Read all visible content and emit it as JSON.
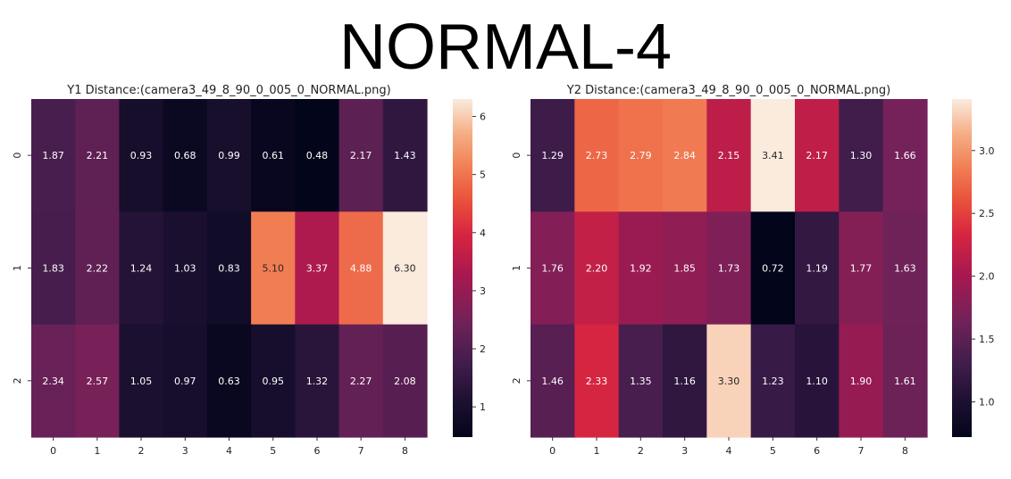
{
  "suptitle": "NORMAL-4",
  "chart_data": [
    {
      "type": "heatmap",
      "title": "Y1 Distance:(camera3_49_8_90_0_005_0_NORMAL.png)",
      "x_categories": [
        "0",
        "1",
        "2",
        "3",
        "4",
        "5",
        "6",
        "7",
        "8"
      ],
      "y_categories": [
        "0",
        "1",
        "2"
      ],
      "values": [
        [
          1.87,
          2.21,
          0.93,
          0.68,
          0.99,
          0.61,
          0.48,
          2.17,
          1.43
        ],
        [
          1.83,
          2.22,
          1.24,
          1.03,
          0.83,
          5.1,
          3.37,
          4.88,
          6.3
        ],
        [
          2.34,
          2.57,
          1.05,
          0.97,
          0.63,
          0.95,
          1.32,
          2.27,
          2.08
        ]
      ],
      "value_range": [
        0.48,
        6.3
      ],
      "colorbar_ticks": [
        "1",
        "2",
        "3",
        "4",
        "5",
        "6"
      ],
      "colormap": "rocket"
    },
    {
      "type": "heatmap",
      "title": "Y2 Distance:(camera3_49_8_90_0_005_0_NORMAL.png)",
      "x_categories": [
        "0",
        "1",
        "2",
        "3",
        "4",
        "5",
        "6",
        "7",
        "8"
      ],
      "y_categories": [
        "0",
        "1",
        "2"
      ],
      "values": [
        [
          1.29,
          2.73,
          2.79,
          2.84,
          2.15,
          3.41,
          2.17,
          1.3,
          1.66
        ],
        [
          1.76,
          2.2,
          1.92,
          1.85,
          1.73,
          0.72,
          1.19,
          1.77,
          1.63
        ],
        [
          1.46,
          2.33,
          1.35,
          1.16,
          3.3,
          1.23,
          1.1,
          1.9,
          1.61
        ]
      ],
      "value_range": [
        0.72,
        3.41
      ],
      "colorbar_ticks": [
        "1.0",
        "1.5",
        "2.0",
        "2.5",
        "3.0"
      ],
      "colormap": "rocket"
    }
  ]
}
